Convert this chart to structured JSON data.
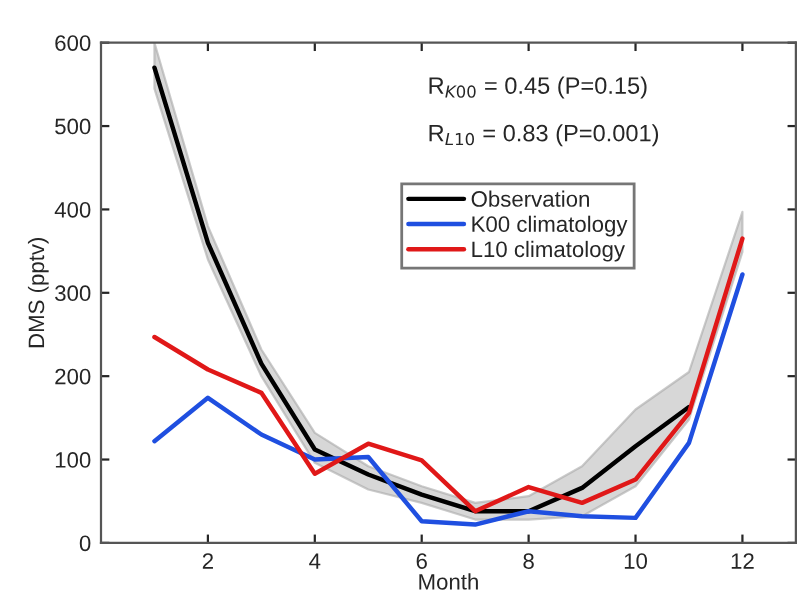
{
  "chart_data": {
    "type": "line",
    "xlabel": "Month",
    "ylabel": "DMS (pptv)",
    "x": [
      1,
      2,
      3,
      4,
      5,
      6,
      7,
      8,
      9,
      10,
      11,
      12
    ],
    "series": [
      {
        "name": "Observation",
        "color": "#000000",
        "values": [
          570,
          360,
          215,
          112,
          82,
          58,
          38,
          38,
          66,
          116,
          163,
          null
        ],
        "lower": [
          545,
          340,
          200,
          96,
          64,
          48,
          28,
          28,
          32,
          68,
          148,
          349
        ],
        "upper": [
          600,
          380,
          232,
          132,
          92,
          68,
          48,
          56,
          92,
          160,
          205,
          397
        ]
      },
      {
        "name": "K00 climatology",
        "color": "#1f4fe0",
        "values": [
          122,
          174,
          130,
          100,
          103,
          26,
          22,
          38,
          32,
          30,
          120,
          322
        ]
      },
      {
        "name": "L10 climatology",
        "color": "#e01818",
        "values": [
          247,
          208,
          180,
          83,
          119,
          99,
          38,
          67,
          48,
          76,
          156,
          365
        ]
      }
    ],
    "annotations": [
      "R$_{K00}$ = 0.45 (P=0.15)",
      "R$_{L10}$ = 0.83 (P=0.001)"
    ],
    "xlim": [
      0,
      13
    ],
    "xticks": [
      2,
      4,
      6,
      8,
      10,
      12
    ],
    "ylim": [
      0,
      600
    ],
    "yticks": [
      0,
      100,
      200,
      300,
      400,
      500,
      600
    ],
    "grid": false,
    "legend": "top",
    "line_style": "solid",
    "marker": "none"
  }
}
